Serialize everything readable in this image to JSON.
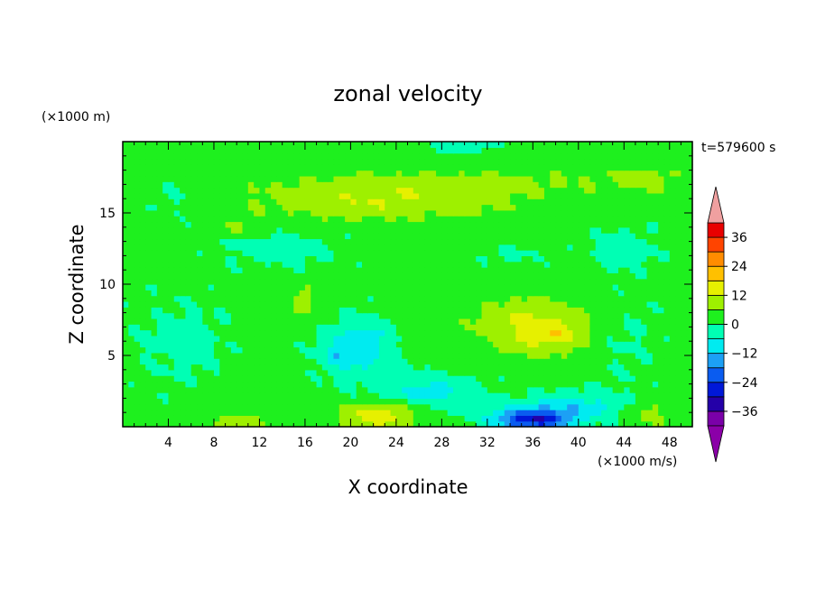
{
  "chart_data": {
    "type": "heatmap",
    "title": "zonal velocity",
    "xlabel": "X coordinate",
    "ylabel": "Z coordinate",
    "x_unit": "(×1000 m/s)",
    "y_unit": "(×1000 m)",
    "time_label": "t=579600 s",
    "xlim": [
      0,
      50
    ],
    "ylim": [
      0,
      20
    ],
    "x_ticks": [
      4,
      8,
      12,
      16,
      20,
      24,
      28,
      32,
      36,
      40,
      44,
      48
    ],
    "y_ticks": [
      5,
      10,
      15
    ],
    "colorbar": {
      "levels": [
        -42,
        -36,
        -30,
        -24,
        -18,
        -12,
        -6,
        0,
        6,
        12,
        18,
        24,
        30,
        36,
        42
      ],
      "tick_labels": [
        -36,
        -24,
        -12,
        0,
        12,
        24,
        36
      ],
      "colors": [
        "#7a00a8",
        "#2400a8",
        "#0018d8",
        "#0a5cf0",
        "#1ca0f5",
        "#00ebf0",
        "#00ffb4",
        "#1ef01e",
        "#9ef000",
        "#e6f000",
        "#ffc000",
        "#ff8c00",
        "#ff4400",
        "#e80000"
      ],
      "under_color": "#8b00a8",
      "over_color": "#f0a0a0"
    },
    "background_value": 2,
    "features": [
      {
        "x": 22.5,
        "z": 15.8,
        "sx": 12.0,
        "sz": 1.3,
        "value": 9
      },
      {
        "x": 30.0,
        "z": 17.2,
        "sx": 16.0,
        "sz": 1.0,
        "value": 5
      },
      {
        "x": 36.0,
        "z": 7.0,
        "sx": 5.0,
        "sz": 2.0,
        "value": 12
      },
      {
        "x": 38.0,
        "z": 6.5,
        "sx": 2.5,
        "sz": 0.8,
        "value": 5
      },
      {
        "x": 16.0,
        "z": 9.0,
        "sx": 1.2,
        "sz": 1.2,
        "value": 7
      },
      {
        "x": 20.5,
        "z": 5.5,
        "sx": 3.0,
        "sz": 2.0,
        "value": -12
      },
      {
        "x": 22.0,
        "z": 6.4,
        "sx": 0.8,
        "sz": 0.5,
        "value": -7
      },
      {
        "x": 18.5,
        "z": 5.0,
        "sx": 0.7,
        "sz": 0.6,
        "value": -6
      },
      {
        "x": 27.0,
        "z": 2.5,
        "sx": 4.5,
        "sz": 1.2,
        "value": -10
      },
      {
        "x": 36.0,
        "z": 0.5,
        "sx": 3.5,
        "sz": 0.8,
        "value": -30
      },
      {
        "x": 40.0,
        "z": 1.5,
        "sx": 5.0,
        "sz": 1.0,
        "value": -10
      },
      {
        "x": 22.5,
        "z": 0.8,
        "sx": 3.5,
        "sz": 1.0,
        "value": 14
      },
      {
        "x": 10.0,
        "z": 0.2,
        "sx": 2.5,
        "sz": 0.6,
        "value": 10
      },
      {
        "x": 46.0,
        "z": 1.0,
        "sx": 2.5,
        "sz": 1.0,
        "value": 7
      },
      {
        "x": 14.0,
        "z": 12.5,
        "sx": 5.0,
        "sz": 1.2,
        "value": -5
      },
      {
        "x": 5.0,
        "z": 6.0,
        "sx": 4.0,
        "sz": 3.0,
        "value": -4
      },
      {
        "x": 5.0,
        "z": 16.0,
        "sx": 3.0,
        "sz": 1.5,
        "value": -3
      },
      {
        "x": 44.0,
        "z": 12.5,
        "sx": 3.0,
        "sz": 1.5,
        "value": -5
      },
      {
        "x": 44.0,
        "z": 6.0,
        "sx": 3.0,
        "sz": 3.0,
        "value": -3
      },
      {
        "x": 30.0,
        "z": 19.7,
        "sx": 3.0,
        "sz": 0.4,
        "value": -7
      },
      {
        "x": 34.0,
        "z": 12.0,
        "sx": 3.0,
        "sz": 0.7,
        "value": -3
      },
      {
        "x": 46.0,
        "z": 17.5,
        "sx": 3.0,
        "sz": 1.0,
        "value": 5
      },
      {
        "x": 10.0,
        "z": 14.0,
        "sx": 2.0,
        "sz": 0.6,
        "value": 4
      }
    ]
  }
}
